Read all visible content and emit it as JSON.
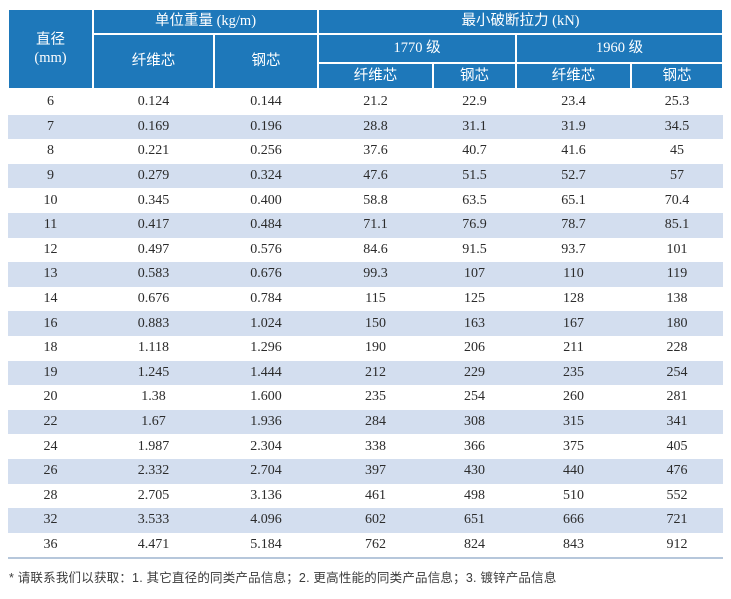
{
  "colors": {
    "header_bg": "#1e78ba",
    "stripe_bg": "#d3deef",
    "table_bottom_border": "#b6c7db",
    "data_text": "#2b2b2b"
  },
  "table": {
    "header": {
      "diameter_line1": "直径",
      "diameter_line2": "(mm)",
      "unit_weight": "单位重量 (kg/m)",
      "breaking_force": "最小破断拉力 (kN)",
      "grade_1770": "1770 级",
      "grade_1960": "1960 级",
      "fiber_core": "纤维芯",
      "steel_core": "钢芯"
    },
    "rows": [
      [
        "6",
        "0.124",
        "0.144",
        "21.2",
        "22.9",
        "23.4",
        "25.3"
      ],
      [
        "7",
        "0.169",
        "0.196",
        "28.8",
        "31.1",
        "31.9",
        "34.5"
      ],
      [
        "8",
        "0.221",
        "0.256",
        "37.6",
        "40.7",
        "41.6",
        "45"
      ],
      [
        "9",
        "0.279",
        "0.324",
        "47.6",
        "51.5",
        "52.7",
        "57"
      ],
      [
        "10",
        "0.345",
        "0.400",
        "58.8",
        "63.5",
        "65.1",
        "70.4"
      ],
      [
        "11",
        "0.417",
        "0.484",
        "71.1",
        "76.9",
        "78.7",
        "85.1"
      ],
      [
        "12",
        "0.497",
        "0.576",
        "84.6",
        "91.5",
        "93.7",
        "101"
      ],
      [
        "13",
        "0.583",
        "0.676",
        "99.3",
        "107",
        "110",
        "119"
      ],
      [
        "14",
        "0.676",
        "0.784",
        "115",
        "125",
        "128",
        "138"
      ],
      [
        "16",
        "0.883",
        "1.024",
        "150",
        "163",
        "167",
        "180"
      ],
      [
        "18",
        "1.118",
        "1.296",
        "190",
        "206",
        "211",
        "228"
      ],
      [
        "19",
        "1.245",
        "1.444",
        "212",
        "229",
        "235",
        "254"
      ],
      [
        "20",
        "1.38",
        "1.600",
        "235",
        "254",
        "260",
        "281"
      ],
      [
        "22",
        "1.67",
        "1.936",
        "284",
        "308",
        "315",
        "341"
      ],
      [
        "24",
        "1.987",
        "2.304",
        "338",
        "366",
        "375",
        "405"
      ],
      [
        "26",
        "2.332",
        "2.704",
        "397",
        "430",
        "440",
        "476"
      ],
      [
        "28",
        "2.705",
        "3.136",
        "461",
        "498",
        "510",
        "552"
      ],
      [
        "32",
        "3.533",
        "4.096",
        "602",
        "651",
        "666",
        "721"
      ],
      [
        "36",
        "4.471",
        "5.184",
        "762",
        "824",
        "843",
        "912"
      ]
    ]
  },
  "footnote": "* 请联系我们以获取：1. 其它直径的同类产品信息；2. 更高性能的同类产品信息；3. 镀锌产品信息"
}
